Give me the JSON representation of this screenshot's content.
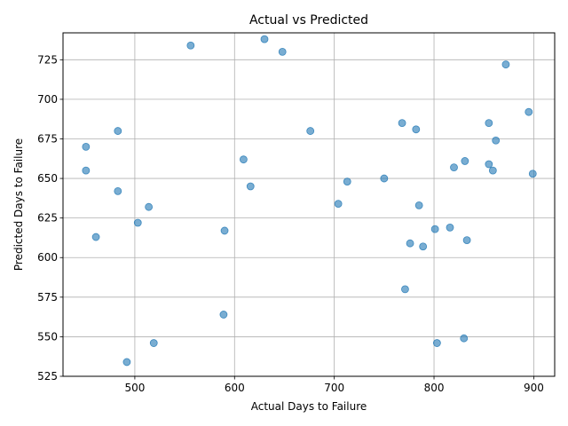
{
  "chart_data": {
    "type": "scatter",
    "title": "Actual vs Predicted",
    "xlabel": "Actual Days to Failure",
    "ylabel": "Predicted Days to Failure",
    "xlim": [
      428,
      921
    ],
    "ylim": [
      525,
      742
    ],
    "xticks": [
      500,
      600,
      700,
      800,
      900
    ],
    "yticks": [
      525,
      550,
      575,
      600,
      625,
      650,
      675,
      700,
      725
    ],
    "grid": true,
    "marker_color": "#1f77b4",
    "marker_alpha": 0.6,
    "points": [
      {
        "x": 630,
        "y": 738
      },
      {
        "x": 556,
        "y": 734
      },
      {
        "x": 648,
        "y": 730
      },
      {
        "x": 872,
        "y": 722
      },
      {
        "x": 895,
        "y": 692
      },
      {
        "x": 768,
        "y": 685
      },
      {
        "x": 855,
        "y": 685
      },
      {
        "x": 483,
        "y": 680
      },
      {
        "x": 676,
        "y": 680
      },
      {
        "x": 782,
        "y": 681
      },
      {
        "x": 862,
        "y": 674
      },
      {
        "x": 451,
        "y": 670
      },
      {
        "x": 609,
        "y": 662
      },
      {
        "x": 831,
        "y": 661
      },
      {
        "x": 855,
        "y": 659
      },
      {
        "x": 820,
        "y": 657
      },
      {
        "x": 859,
        "y": 655
      },
      {
        "x": 451,
        "y": 655
      },
      {
        "x": 899,
        "y": 653
      },
      {
        "x": 750,
        "y": 650
      },
      {
        "x": 713,
        "y": 648
      },
      {
        "x": 616,
        "y": 645
      },
      {
        "x": 483,
        "y": 642
      },
      {
        "x": 704,
        "y": 634
      },
      {
        "x": 785,
        "y": 633
      },
      {
        "x": 514,
        "y": 632
      },
      {
        "x": 503,
        "y": 622
      },
      {
        "x": 816,
        "y": 619
      },
      {
        "x": 801,
        "y": 618
      },
      {
        "x": 590,
        "y": 617
      },
      {
        "x": 461,
        "y": 613
      },
      {
        "x": 833,
        "y": 611
      },
      {
        "x": 776,
        "y": 609
      },
      {
        "x": 789,
        "y": 607
      },
      {
        "x": 771,
        "y": 580
      },
      {
        "x": 589,
        "y": 564
      },
      {
        "x": 830,
        "y": 549
      },
      {
        "x": 519,
        "y": 546
      },
      {
        "x": 803,
        "y": 546
      },
      {
        "x": 492,
        "y": 534
      }
    ]
  }
}
